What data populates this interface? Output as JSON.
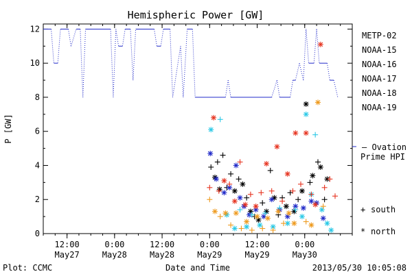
{
  "chart_data": {
    "type": "scatter",
    "title": "Hemispheric Power [GW]",
    "ylabel": "P [GW]",
    "xlabel": "Date and Time",
    "ylim": [
      0,
      12.3
    ],
    "yticks": [
      0,
      2,
      4,
      6,
      8,
      10,
      12
    ],
    "xlim": [
      "2013-05-27 06:00",
      "2013-05-30 12:00"
    ],
    "xticks": [
      {
        "x": "2013-05-27 12:00",
        "line1": "12:00",
        "line2": "May27"
      },
      {
        "x": "2013-05-28 00:00",
        "line1": "0:00",
        "line2": "May28"
      },
      {
        "x": "2013-05-28 12:00",
        "line1": "12:00",
        "line2": "May28"
      },
      {
        "x": "2013-05-29 00:00",
        "line1": "0:00",
        "line2": "May29"
      },
      {
        "x": "2013-05-29 12:00",
        "line1": "12:00",
        "line2": "May29"
      },
      {
        "x": "2013-05-30 00:00",
        "line1": "0:00",
        "line2": "May30"
      }
    ],
    "series": [
      {
        "name": "METP-02",
        "color": "#000000",
        "marker": "mixed",
        "points": [
          [
            "2013-05-29 00:20",
            3.9,
            "+"
          ],
          [
            "2013-05-29 01:20",
            3.3,
            "*"
          ],
          [
            "2013-05-29 02:00",
            4.2,
            "+"
          ],
          [
            "2013-05-29 02:30",
            2.6,
            "*"
          ],
          [
            "2013-05-29 03:20",
            4.6,
            "+"
          ],
          [
            "2013-05-29 04:20",
            2.7,
            "+"
          ],
          [
            "2013-05-29 05:20",
            3.5,
            "+"
          ],
          [
            "2013-05-29 06:20",
            2.5,
            "*"
          ],
          [
            "2013-05-29 07:20",
            3.2,
            "+"
          ],
          [
            "2013-05-29 08:20",
            2.9,
            "*"
          ],
          [
            "2013-05-29 09:20",
            2.1,
            "+"
          ],
          [
            "2013-05-29 10:20",
            1.3,
            "*"
          ],
          [
            "2013-05-29 11:20",
            1.0,
            "+"
          ],
          [
            "2013-05-29 12:20",
            0.8,
            "*"
          ],
          [
            "2013-05-29 13:20",
            1.8,
            "+"
          ],
          [
            "2013-05-29 14:20",
            1.3,
            "*"
          ],
          [
            "2013-05-29 15:20",
            3.7,
            "+"
          ],
          [
            "2013-05-29 16:20",
            2.1,
            "*"
          ],
          [
            "2013-05-29 17:20",
            1.1,
            "+"
          ],
          [
            "2013-05-29 18:20",
            2.1,
            "+"
          ],
          [
            "2013-05-29 19:20",
            1.6,
            "*"
          ],
          [
            "2013-05-29 20:20",
            2.4,
            "+"
          ],
          [
            "2013-05-29 21:20",
            1.3,
            "*"
          ],
          [
            "2013-05-29 22:20",
            2.0,
            "+"
          ],
          [
            "2013-05-29 23:20",
            2.5,
            "*"
          ],
          [
            "2013-05-30 00:20",
            7.6,
            "*"
          ],
          [
            "2013-05-30 01:20",
            3.0,
            "+"
          ],
          [
            "2013-05-30 02:00",
            3.4,
            "*"
          ],
          [
            "2013-05-30 03:20",
            4.2,
            "+"
          ],
          [
            "2013-05-30 04:00",
            3.9,
            "*"
          ],
          [
            "2013-05-30 05:00",
            2.0,
            "+"
          ],
          [
            "2013-05-30 05:40",
            3.2,
            "*"
          ]
        ]
      },
      {
        "name": "NOAA-15",
        "color": "#1f28c8",
        "marker": "mixed",
        "line": [
          [
            "2013-05-27 06:00",
            12
          ],
          [
            "2013-05-27 08:00",
            12
          ],
          [
            "2013-05-27 08:40",
            10
          ],
          [
            "2013-05-27 09:40",
            10
          ],
          [
            "2013-05-27 10:20",
            12
          ],
          [
            "2013-05-27 12:20",
            12
          ],
          [
            "2013-05-27 13:00",
            11
          ],
          [
            "2013-05-27 14:20",
            12
          ],
          [
            "2013-05-27 15:20",
            12
          ],
          [
            "2013-05-27 16:00",
            8
          ],
          [
            "2013-05-27 16:40",
            12
          ],
          [
            "2013-05-27 23:00",
            12
          ],
          [
            "2013-05-27 23:40",
            8
          ],
          [
            "2013-05-28 00:20",
            12
          ],
          [
            "2013-05-28 01:00",
            11
          ],
          [
            "2013-05-28 02:00",
            11
          ],
          [
            "2013-05-28 02:40",
            12
          ],
          [
            "2013-05-28 04:00",
            12
          ],
          [
            "2013-05-28 04:40",
            9
          ],
          [
            "2013-05-28 05:20",
            12
          ],
          [
            "2013-05-28 10:00",
            12
          ],
          [
            "2013-05-28 10:40",
            11
          ],
          [
            "2013-05-28 11:40",
            11
          ],
          [
            "2013-05-28 12:20",
            12
          ],
          [
            "2013-05-28 14:00",
            12
          ],
          [
            "2013-05-28 14:40",
            8
          ],
          [
            "2013-05-28 16:40",
            11
          ],
          [
            "2013-05-28 17:20",
            8
          ],
          [
            "2013-05-28 18:20",
            12
          ],
          [
            "2013-05-28 19:40",
            12
          ],
          [
            "2013-05-28 20:20",
            8
          ],
          [
            "2013-05-29 04:00",
            8
          ],
          [
            "2013-05-29 04:40",
            9
          ],
          [
            "2013-05-29 05:20",
            8
          ],
          [
            "2013-05-29 15:40",
            8
          ],
          [
            "2013-05-29 17:00",
            9
          ],
          [
            "2013-05-29 17:40",
            8
          ],
          [
            "2013-05-29 20:20",
            8
          ],
          [
            "2013-05-29 21:00",
            9
          ],
          [
            "2013-05-29 21:40",
            9
          ],
          [
            "2013-05-29 22:40",
            10
          ],
          [
            "2013-05-29 23:40",
            9
          ],
          [
            "2013-05-30 00:20",
            12
          ],
          [
            "2013-05-30 01:00",
            10
          ],
          [
            "2013-05-30 02:20",
            10
          ],
          [
            "2013-05-30 03:00",
            12
          ],
          [
            "2013-05-30 03:40",
            10
          ],
          [
            "2013-05-30 05:40",
            10
          ],
          [
            "2013-05-30 06:20",
            9
          ],
          [
            "2013-05-30 07:20",
            9
          ],
          [
            "2013-05-30 08:20",
            8
          ]
        ],
        "points": [
          [
            "2013-05-29 00:10",
            4.7,
            "*"
          ],
          [
            "2013-05-29 01:40",
            3.2,
            "*"
          ],
          [
            "2013-05-29 03:40",
            2.4,
            "*"
          ],
          [
            "2013-05-29 05:00",
            2.7,
            "*"
          ],
          [
            "2013-05-29 06:40",
            4.0,
            "*"
          ],
          [
            "2013-05-29 07:40",
            2.1,
            "*"
          ],
          [
            "2013-05-29 08:40",
            1.6,
            "*"
          ],
          [
            "2013-05-29 10:00",
            1.1,
            "*"
          ],
          [
            "2013-05-29 11:40",
            1.4,
            "*"
          ],
          [
            "2013-05-29 13:40",
            1.0,
            "*"
          ],
          [
            "2013-05-29 15:40",
            2.0,
            "*"
          ],
          [
            "2013-05-29 17:40",
            1.4,
            "*"
          ],
          [
            "2013-05-29 19:40",
            1.0,
            "*"
          ],
          [
            "2013-05-29 21:40",
            1.6,
            "*"
          ],
          [
            "2013-05-29 23:40",
            1.5,
            "*"
          ],
          [
            "2013-05-30 01:40",
            1.9,
            "*"
          ],
          [
            "2013-05-30 03:00",
            1.8,
            "*"
          ],
          [
            "2013-05-30 04:40",
            0.9,
            "*"
          ]
        ]
      },
      {
        "name": "NOAA-16",
        "color": "#28c8e6",
        "marker": "mixed",
        "points": [
          [
            "2013-05-29 00:20",
            6.1,
            "*"
          ],
          [
            "2013-05-29 02:40",
            6.7,
            "+"
          ],
          [
            "2013-05-29 04:20",
            1.1,
            "*"
          ],
          [
            "2013-05-29 06:20",
            0.3,
            "*"
          ],
          [
            "2013-05-29 07:40",
            1.4,
            "+"
          ],
          [
            "2013-05-29 09:20",
            0.4,
            "*"
          ],
          [
            "2013-05-29 10:40",
            1.1,
            "+"
          ],
          [
            "2013-05-29 12:40",
            0.5,
            "*"
          ],
          [
            "2013-05-29 14:00",
            1.2,
            "+"
          ],
          [
            "2013-05-29 16:00",
            0.4,
            "*"
          ],
          [
            "2013-05-29 17:40",
            1.5,
            "+"
          ],
          [
            "2013-05-29 19:40",
            0.6,
            "*"
          ],
          [
            "2013-05-29 21:40",
            1.4,
            "+"
          ],
          [
            "2013-05-29 23:20",
            1.0,
            "*"
          ],
          [
            "2013-05-30 00:20",
            7.0,
            "*"
          ],
          [
            "2013-05-30 01:40",
            2.3,
            "*"
          ],
          [
            "2013-05-30 02:40",
            5.8,
            "+"
          ],
          [
            "2013-05-30 04:20",
            1.4,
            "*"
          ],
          [
            "2013-05-30 05:40",
            0.6,
            "*"
          ],
          [
            "2013-05-30 06:40",
            0.2,
            "*"
          ]
        ]
      },
      {
        "name": "NOAA-17",
        "color": "#32dc46",
        "marker": "mixed",
        "points": []
      },
      {
        "name": "NOAA-18",
        "color": "#ee9a1e",
        "marker": "mixed",
        "points": [
          [
            "2013-05-29 00:00",
            2.0,
            "+"
          ],
          [
            "2013-05-29 01:20",
            1.3,
            "*"
          ],
          [
            "2013-05-29 02:40",
            1.0,
            "+"
          ],
          [
            "2013-05-29 04:00",
            1.2,
            "*"
          ],
          [
            "2013-05-29 05:20",
            0.5,
            "+"
          ],
          [
            "2013-05-29 06:40",
            1.2,
            "*"
          ],
          [
            "2013-05-29 08:00",
            0.3,
            "+"
          ],
          [
            "2013-05-29 09:20",
            0.7,
            "*"
          ],
          [
            "2013-05-29 10:40",
            0.2,
            "+"
          ],
          [
            "2013-05-29 12:00",
            1.0,
            "*"
          ],
          [
            "2013-05-29 13:20",
            0.3,
            "+"
          ],
          [
            "2013-05-29 14:40",
            0.9,
            "*"
          ],
          [
            "2013-05-29 16:00",
            0.2,
            "+"
          ],
          [
            "2013-05-29 17:20",
            1.3,
            "*"
          ],
          [
            "2013-05-29 18:40",
            0.6,
            "+"
          ],
          [
            "2013-05-29 20:00",
            1.2,
            "*"
          ],
          [
            "2013-05-29 21:20",
            0.6,
            "*"
          ],
          [
            "2013-05-30 00:20",
            0.7,
            "+"
          ],
          [
            "2013-05-30 01:40",
            0.5,
            "*"
          ],
          [
            "2013-05-30 03:20",
            7.7,
            "*"
          ],
          [
            "2013-05-30 04:40",
            1.6,
            "+"
          ]
        ]
      },
      {
        "name": "NOAA-19",
        "color": "#e6321e",
        "marker": "mixed",
        "points": [
          [
            "2013-05-29 00:00",
            2.7,
            "+"
          ],
          [
            "2013-05-29 01:00",
            6.8,
            "*"
          ],
          [
            "2013-05-29 02:20",
            2.5,
            "+"
          ],
          [
            "2013-05-29 03:40",
            3.1,
            "*"
          ],
          [
            "2013-05-29 05:00",
            2.9,
            "+"
          ],
          [
            "2013-05-29 06:20",
            1.9,
            "*"
          ],
          [
            "2013-05-29 07:40",
            4.2,
            "+"
          ],
          [
            "2013-05-29 09:00",
            1.7,
            "*"
          ],
          [
            "2013-05-29 10:20",
            2.3,
            "+"
          ],
          [
            "2013-05-29 11:40",
            1.6,
            "*"
          ],
          [
            "2013-05-29 13:00",
            2.4,
            "+"
          ],
          [
            "2013-05-29 14:20",
            4.1,
            "*"
          ],
          [
            "2013-05-29 15:40",
            2.5,
            "+"
          ],
          [
            "2013-05-29 17:00",
            5.1,
            "*"
          ],
          [
            "2013-05-29 18:20",
            1.9,
            "+"
          ],
          [
            "2013-05-29 19:40",
            3.5,
            "*"
          ],
          [
            "2013-05-29 21:00",
            2.5,
            "+"
          ],
          [
            "2013-05-29 21:40",
            5.9,
            "*"
          ],
          [
            "2013-05-29 23:00",
            2.9,
            "+"
          ],
          [
            "2013-05-30 00:20",
            5.9,
            "*"
          ],
          [
            "2013-05-30 01:40",
            2.3,
            "+"
          ],
          [
            "2013-05-30 02:40",
            1.7,
            "*"
          ],
          [
            "2013-05-30 04:00",
            11.1,
            "*"
          ],
          [
            "2013-05-30 05:00",
            2.7,
            "+"
          ],
          [
            "2013-05-30 06:20",
            3.2,
            "+"
          ],
          [
            "2013-05-30 07:40",
            2.2,
            "+"
          ]
        ]
      }
    ],
    "reference": {
      "label_line1": "— Ovation",
      "label_line2": "Prime HPI",
      "color": "#1f28c8"
    },
    "marker_legend": [
      {
        "symbol": "+",
        "label": "south"
      },
      {
        "symbol": "*",
        "label": "north"
      }
    ],
    "footer": {
      "left": "Plot: CCMC",
      "right": "2013/05/30 10:05:08"
    }
  }
}
